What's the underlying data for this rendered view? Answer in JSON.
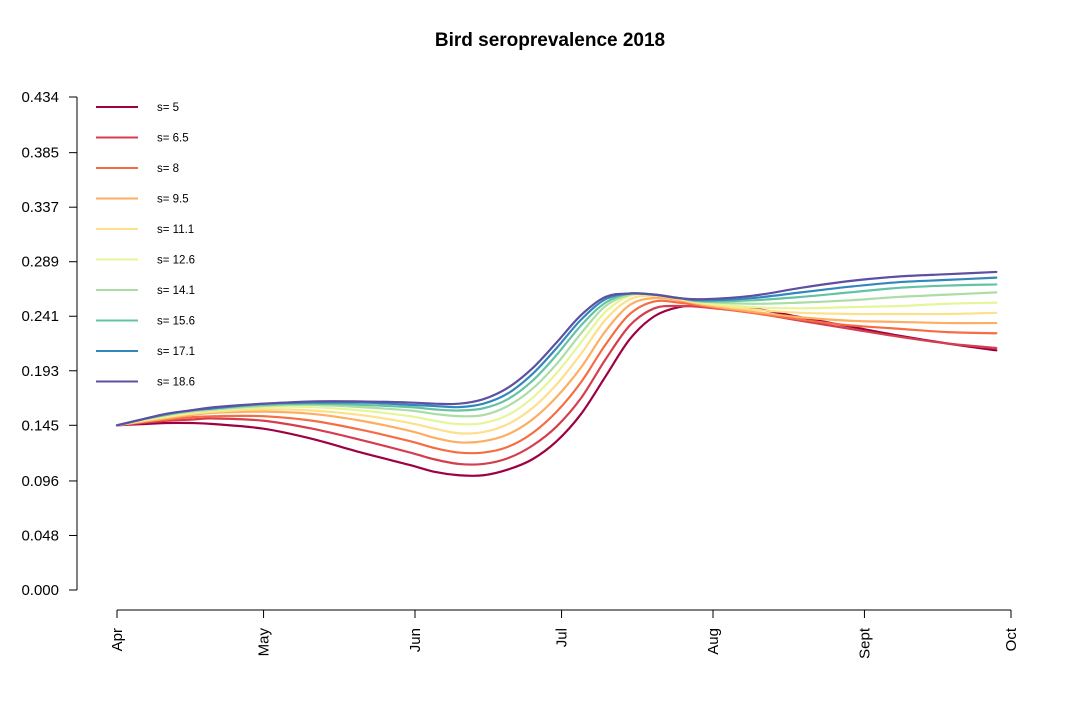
{
  "chart_data": {
    "type": "line",
    "title": "Bird seroprevalence 2018",
    "xlabel": "",
    "ylabel": "",
    "x_ticks": [
      "Apr",
      "May",
      "Jun",
      "Jul",
      "Aug",
      "Sept",
      "Oct"
    ],
    "x_tick_days": [
      0,
      30,
      61,
      91,
      122,
      153,
      183
    ],
    "x_range_days": [
      0,
      183
    ],
    "y_ticks": [
      "0.000",
      "0.048",
      "0.096",
      "0.145",
      "0.193",
      "0.241",
      "0.289",
      "0.337",
      "0.385",
      "0.434"
    ],
    "ylim": [
      0,
      0.434
    ],
    "grid": false,
    "legend_position": "top-left",
    "x": [
      0,
      5,
      10,
      15,
      20,
      30,
      40,
      50,
      60,
      65,
      70,
      75,
      80,
      85,
      90,
      95,
      100,
      105,
      110,
      115,
      120,
      130,
      140,
      150,
      160,
      170,
      180
    ],
    "series": [
      {
        "name": "s= 5",
        "color": "#9e0142",
        "values": [
          0.145,
          0.146,
          0.147,
          0.147,
          0.146,
          0.142,
          0.133,
          0.121,
          0.11,
          0.104,
          0.101,
          0.101,
          0.106,
          0.115,
          0.131,
          0.155,
          0.188,
          0.221,
          0.241,
          0.249,
          0.25,
          0.248,
          0.24,
          0.232,
          0.224,
          0.217,
          0.211
        ]
      },
      {
        "name": "s= 6.5",
        "color": "#d53e4f",
        "values": [
          0.145,
          0.147,
          0.149,
          0.15,
          0.151,
          0.149,
          0.142,
          0.132,
          0.121,
          0.115,
          0.111,
          0.111,
          0.116,
          0.127,
          0.144,
          0.169,
          0.203,
          0.233,
          0.248,
          0.25,
          0.249,
          0.244,
          0.237,
          0.23,
          0.223,
          0.217,
          0.213
        ]
      },
      {
        "name": "s= 8",
        "color": "#f46d43",
        "values": [
          0.145,
          0.148,
          0.15,
          0.152,
          0.153,
          0.153,
          0.149,
          0.141,
          0.131,
          0.125,
          0.121,
          0.121,
          0.126,
          0.138,
          0.157,
          0.183,
          0.216,
          0.243,
          0.254,
          0.253,
          0.25,
          0.244,
          0.238,
          0.233,
          0.23,
          0.227,
          0.226
        ]
      },
      {
        "name": "s= 9.5",
        "color": "#fdae61",
        "values": [
          0.145,
          0.148,
          0.151,
          0.154,
          0.156,
          0.157,
          0.155,
          0.149,
          0.14,
          0.134,
          0.13,
          0.131,
          0.137,
          0.15,
          0.17,
          0.196,
          0.228,
          0.251,
          0.257,
          0.255,
          0.251,
          0.245,
          0.24,
          0.237,
          0.236,
          0.235,
          0.235
        ]
      },
      {
        "name": "s= 11.1",
        "color": "#fee08b",
        "values": [
          0.145,
          0.149,
          0.152,
          0.155,
          0.157,
          0.159,
          0.158,
          0.154,
          0.147,
          0.142,
          0.138,
          0.139,
          0.146,
          0.16,
          0.181,
          0.208,
          0.238,
          0.256,
          0.259,
          0.256,
          0.252,
          0.247,
          0.244,
          0.243,
          0.243,
          0.243,
          0.244
        ]
      },
      {
        "name": "s= 12.6",
        "color": "#e6f598",
        "values": [
          0.145,
          0.149,
          0.153,
          0.156,
          0.158,
          0.161,
          0.161,
          0.158,
          0.153,
          0.149,
          0.146,
          0.147,
          0.154,
          0.169,
          0.191,
          0.218,
          0.245,
          0.259,
          0.26,
          0.257,
          0.253,
          0.249,
          0.248,
          0.249,
          0.25,
          0.252,
          0.253
        ]
      },
      {
        "name": "s= 14.1",
        "color": "#abdda4",
        "values": [
          0.145,
          0.15,
          0.154,
          0.157,
          0.159,
          0.162,
          0.163,
          0.161,
          0.158,
          0.155,
          0.153,
          0.154,
          0.162,
          0.177,
          0.199,
          0.226,
          0.25,
          0.26,
          0.26,
          0.257,
          0.254,
          0.252,
          0.253,
          0.255,
          0.258,
          0.26,
          0.262
        ]
      },
      {
        "name": "s= 15.6",
        "color": "#66c2a5",
        "values": [
          0.145,
          0.15,
          0.154,
          0.158,
          0.16,
          0.163,
          0.164,
          0.163,
          0.161,
          0.159,
          0.158,
          0.16,
          0.168,
          0.184,
          0.207,
          0.233,
          0.253,
          0.261,
          0.26,
          0.257,
          0.254,
          0.255,
          0.258,
          0.262,
          0.266,
          0.268,
          0.269
        ]
      },
      {
        "name": "s= 17.1",
        "color": "#3288bd",
        "values": [
          0.145,
          0.15,
          0.155,
          0.158,
          0.16,
          0.164,
          0.165,
          0.165,
          0.163,
          0.162,
          0.161,
          0.164,
          0.173,
          0.19,
          0.213,
          0.238,
          0.256,
          0.261,
          0.26,
          0.257,
          0.255,
          0.257,
          0.262,
          0.267,
          0.271,
          0.273,
          0.275
        ]
      },
      {
        "name": "s= 18.6",
        "color": "#5e4fa2",
        "values": [
          0.145,
          0.15,
          0.155,
          0.158,
          0.161,
          0.164,
          0.166,
          0.166,
          0.165,
          0.164,
          0.164,
          0.168,
          0.178,
          0.195,
          0.218,
          0.242,
          0.258,
          0.261,
          0.26,
          0.257,
          0.256,
          0.259,
          0.266,
          0.272,
          0.276,
          0.278,
          0.28
        ]
      }
    ]
  }
}
